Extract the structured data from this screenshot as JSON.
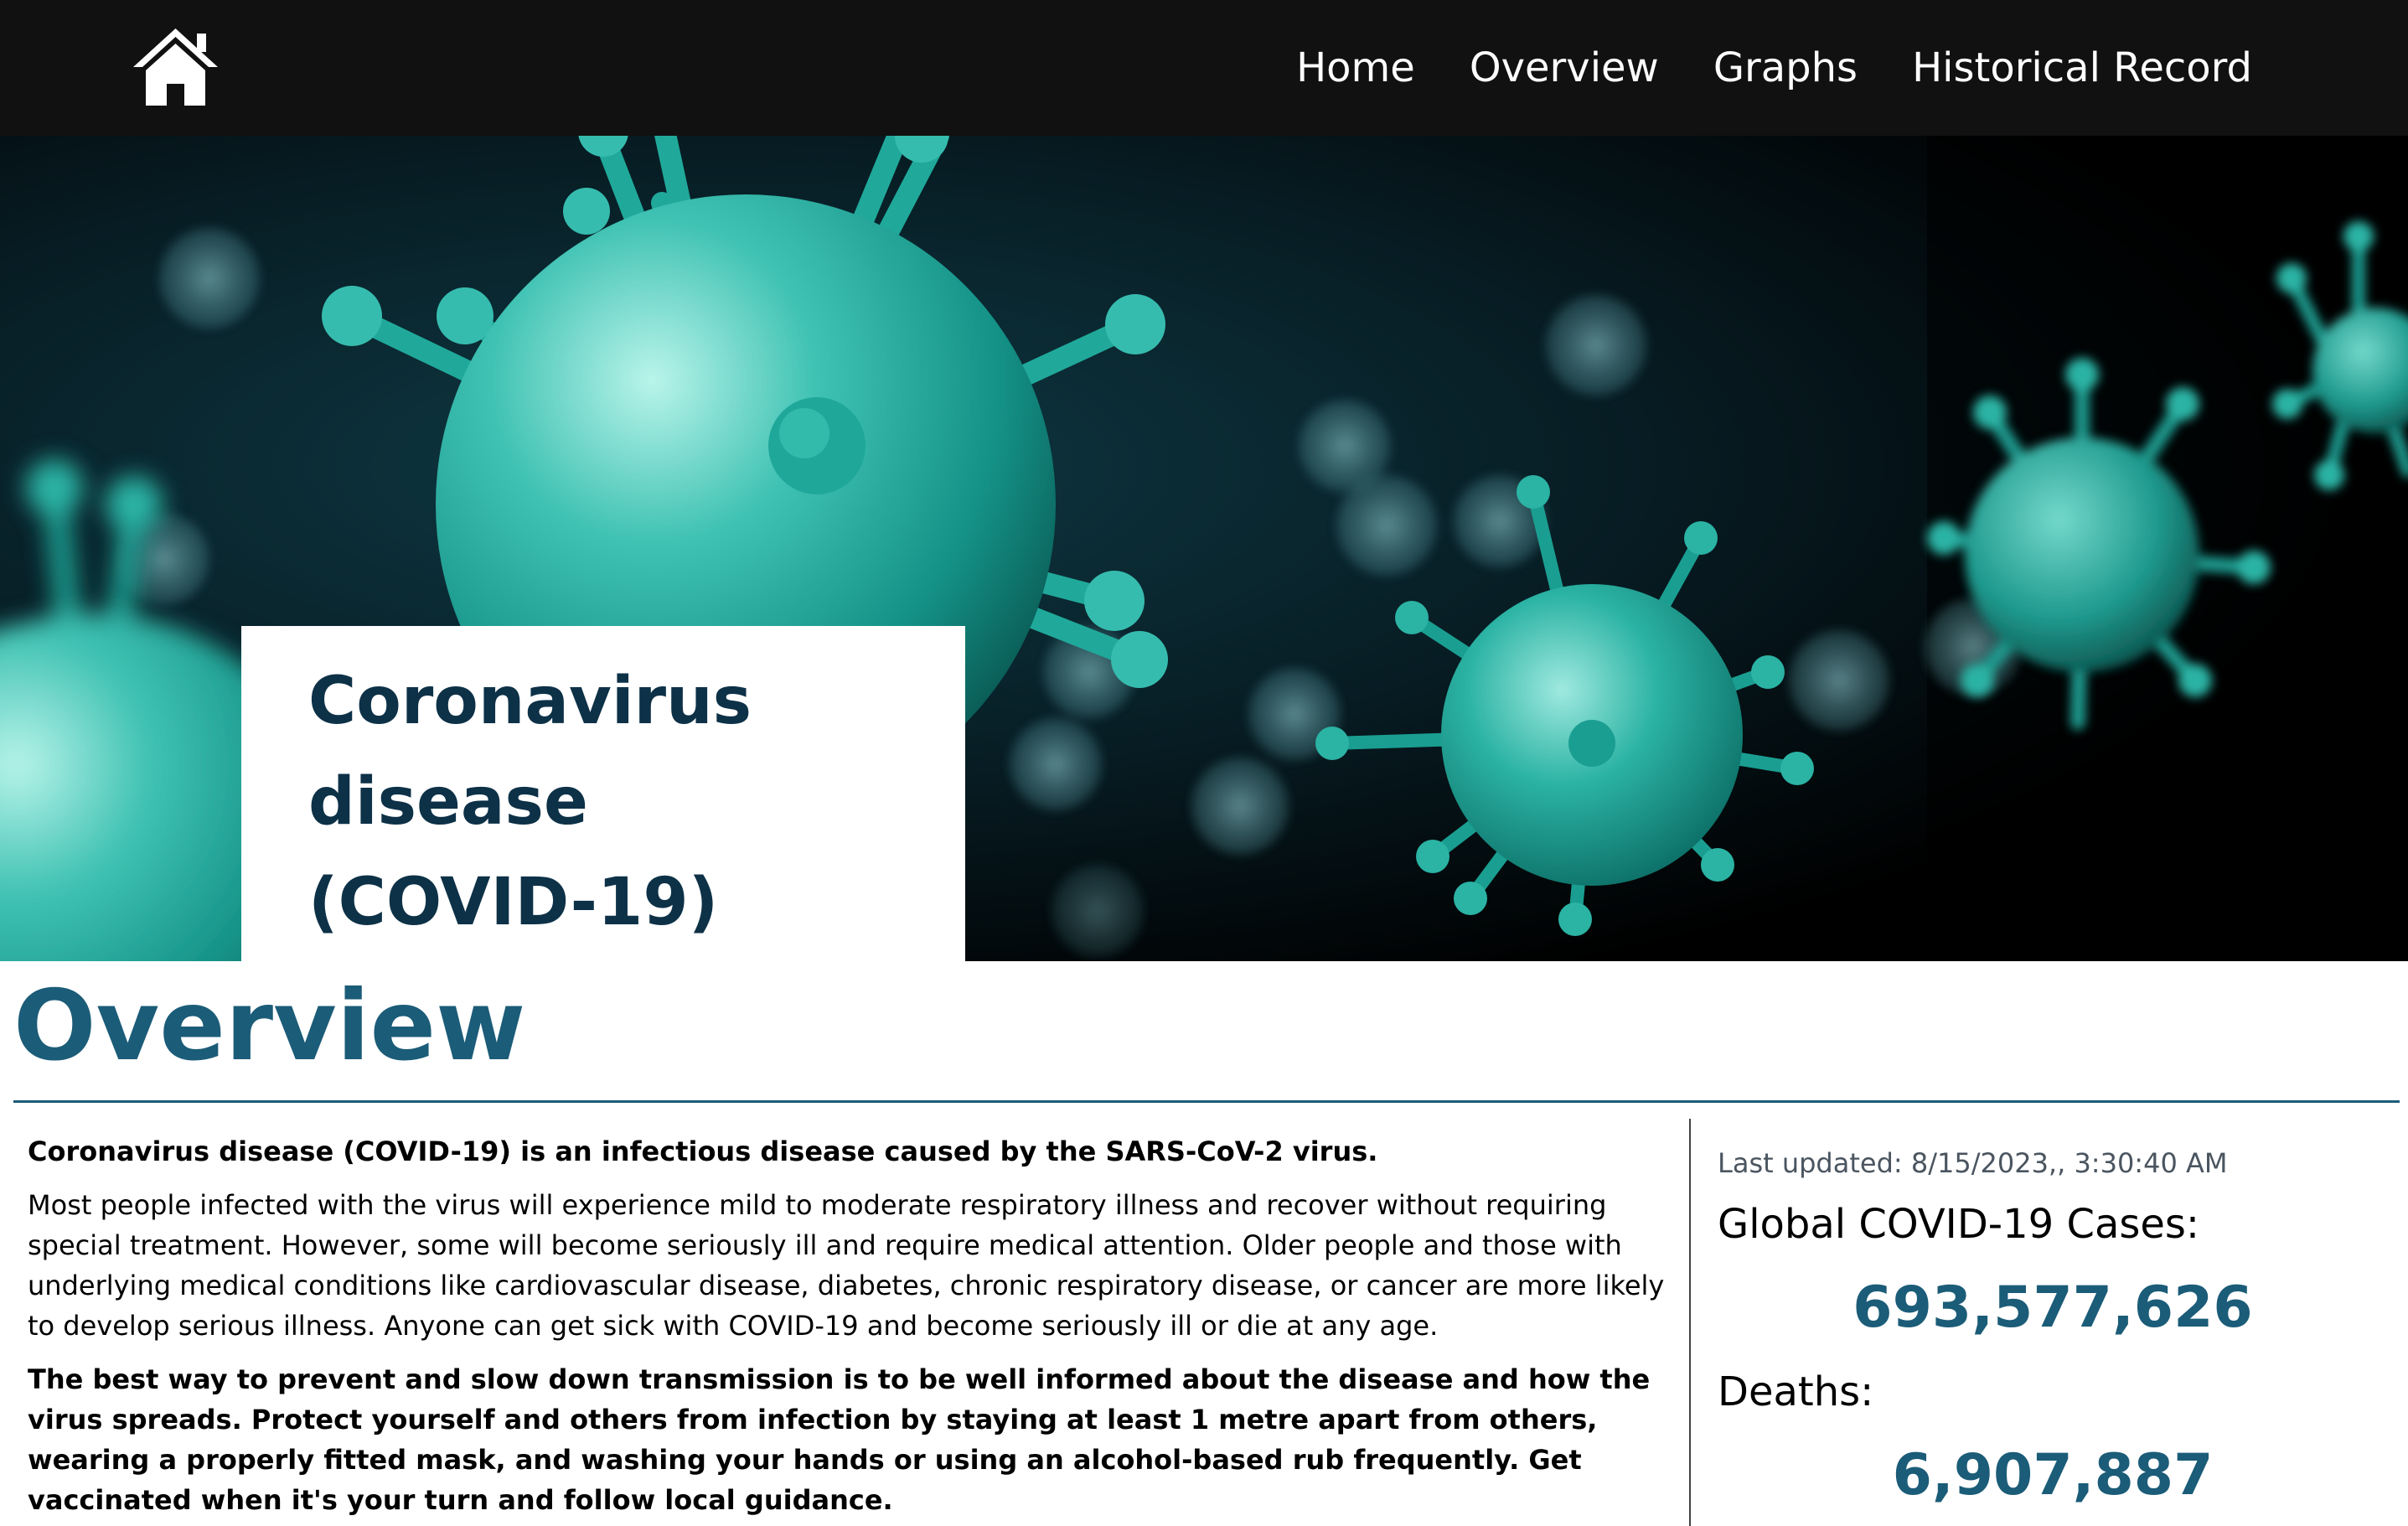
{
  "nav": {
    "home_icon": "home-icon",
    "links": [
      "Home",
      "Overview",
      "Graphs",
      "Historical Record"
    ]
  },
  "hero": {
    "title": "Coronavirus disease (COVID-19)",
    "image": "coronavirus-particles-illustration"
  },
  "overview": {
    "heading": "Overview",
    "paragraphs": [
      "Coronavirus disease (COVID-19) is an infectious disease caused by the SARS-CoV-2 virus.",
      "Most people infected with the virus will experience mild to moderate respiratory illness and recover without requiring special treatment. However, some will become seriously ill and require medical attention. Older people and those with underlying medical conditions like cardiovascular disease, diabetes, chronic respiratory disease, or cancer are more likely to develop serious illness. Anyone can get sick with COVID-19 and become seriously ill or die at any age.",
      "The best way to prevent and slow down transmission is to be well informed about the disease and how the virus spreads. Protect yourself and others from infection by staying at least 1 metre apart from others, wearing a properly fitted mask, and washing your hands or using an alcohol-based rub frequently. Get vaccinated when it's your turn and follow local guidance."
    ]
  },
  "stats": {
    "last_updated": "Last updated: 8/15/2023,, 3:30:40 AM",
    "cases_label": "Global COVID-19 Cases:",
    "cases_value": "693,577,626",
    "deaths_label": "Deaths:",
    "deaths_value": "6,907,887"
  },
  "colors": {
    "nav_bg": "#111111",
    "title_dark": "#0d3147",
    "accent": "#1b5c78",
    "virus_teal": "#1fa89a"
  }
}
